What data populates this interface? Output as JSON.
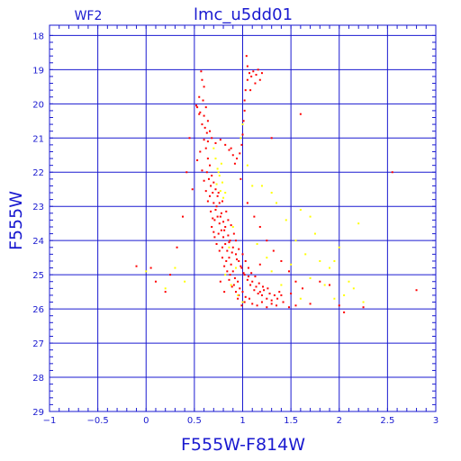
{
  "chart_data": {
    "type": "scatter",
    "title": "lmc_u5dd01",
    "subtitle": "WF2",
    "xlabel": "F555W-F814W",
    "ylabel": "F555W",
    "xlim": [
      -1,
      3
    ],
    "ylim": [
      29,
      17.7
    ],
    "y_inverted": true,
    "grid": true,
    "x_ticks": [
      -1,
      -0.5,
      0,
      0.5,
      1,
      1.5,
      2,
      2.5,
      3
    ],
    "x_tick_labels": [
      "−1",
      "−0.5",
      "0",
      "0.5",
      "1",
      "1.5",
      "2",
      "2.5",
      "3"
    ],
    "y_ticks": [
      18,
      19,
      20,
      21,
      22,
      23,
      24,
      25,
      26,
      27,
      28,
      29
    ],
    "y_tick_labels": [
      "18",
      "19",
      "20",
      "21",
      "22",
      "23",
      "24",
      "25",
      "26",
      "27",
      "28",
      "29"
    ],
    "series": [
      {
        "color": "#ff0000",
        "points": [
          [
            0.57,
            19.05
          ],
          [
            0.58,
            19.3
          ],
          [
            0.6,
            19.5
          ],
          [
            0.55,
            19.8
          ],
          [
            0.53,
            20.1
          ],
          [
            0.56,
            20.25
          ],
          [
            0.6,
            20.35
          ],
          [
            0.58,
            20.6
          ],
          [
            0.61,
            20.7
          ],
          [
            0.63,
            20.85
          ],
          [
            0.55,
            20.3
          ],
          [
            0.52,
            20.05
          ],
          [
            0.59,
            19.9
          ],
          [
            0.62,
            20.1
          ],
          [
            0.64,
            20.5
          ],
          [
            0.66,
            20.8
          ],
          [
            0.6,
            21.05
          ],
          [
            0.64,
            21.1
          ],
          [
            0.68,
            21.0
          ],
          [
            0.72,
            21.15
          ],
          [
            0.77,
            21.05
          ],
          [
            0.82,
            21.2
          ],
          [
            0.86,
            21.35
          ],
          [
            0.9,
            21.5
          ],
          [
            0.94,
            21.6
          ],
          [
            0.97,
            21.45
          ],
          [
            0.99,
            21.2
          ],
          [
            1.0,
            20.9
          ],
          [
            1.01,
            20.5
          ],
          [
            1.02,
            20.2
          ],
          [
            1.02,
            19.9
          ],
          [
            1.03,
            19.6
          ],
          [
            1.05,
            19.3
          ],
          [
            1.07,
            19.1
          ],
          [
            1.09,
            19.2
          ],
          [
            1.11,
            19.05
          ],
          [
            1.14,
            19.15
          ],
          [
            1.16,
            19.0
          ],
          [
            1.18,
            19.3
          ],
          [
            1.2,
            19.1
          ],
          [
            1.13,
            19.4
          ],
          [
            1.04,
            18.6
          ],
          [
            1.05,
            18.9
          ],
          [
            1.08,
            19.6
          ],
          [
            0.62,
            21.3
          ],
          [
            0.64,
            21.6
          ],
          [
            0.66,
            21.8
          ],
          [
            0.63,
            22.0
          ],
          [
            0.65,
            22.2
          ],
          [
            0.67,
            22.4
          ],
          [
            0.69,
            22.6
          ],
          [
            0.66,
            22.7
          ],
          [
            0.7,
            22.9
          ],
          [
            0.72,
            23.1
          ],
          [
            0.74,
            23.3
          ],
          [
            0.71,
            23.4
          ],
          [
            0.76,
            23.5
          ],
          [
            0.78,
            23.7
          ],
          [
            0.75,
            23.8
          ],
          [
            0.8,
            23.9
          ],
          [
            0.82,
            24.1
          ],
          [
            0.79,
            24.2
          ],
          [
            0.84,
            24.3
          ],
          [
            0.86,
            24.5
          ],
          [
            0.83,
            24.6
          ],
          [
            0.88,
            24.7
          ],
          [
            0.9,
            24.9
          ],
          [
            0.87,
            25.0
          ],
          [
            0.92,
            25.1
          ],
          [
            0.95,
            25.2
          ],
          [
            0.91,
            25.3
          ],
          [
            0.97,
            25.4
          ],
          [
            1.0,
            25.5
          ],
          [
            0.96,
            25.6
          ],
          [
            1.03,
            25.65
          ],
          [
            1.07,
            25.7
          ],
          [
            1.02,
            25.8
          ],
          [
            1.1,
            25.85
          ],
          [
            1.15,
            25.9
          ],
          [
            1.2,
            25.8
          ],
          [
            1.25,
            25.95
          ],
          [
            1.3,
            25.85
          ],
          [
            1.35,
            25.9
          ],
          [
            1.42,
            25.8
          ],
          [
            1.48,
            25.95
          ],
          [
            1.55,
            25.9
          ],
          [
            0.68,
            22.1
          ],
          [
            0.7,
            22.3
          ],
          [
            0.72,
            22.5
          ],
          [
            0.74,
            22.7
          ],
          [
            0.76,
            22.9
          ],
          [
            0.78,
            23.2
          ],
          [
            0.8,
            23.45
          ],
          [
            0.82,
            23.6
          ],
          [
            0.85,
            23.85
          ],
          [
            0.87,
            24.0
          ],
          [
            0.9,
            24.2
          ],
          [
            0.93,
            24.4
          ],
          [
            0.96,
            24.6
          ],
          [
            0.99,
            24.8
          ],
          [
            1.02,
            25.0
          ],
          [
            1.05,
            25.15
          ],
          [
            1.08,
            25.3
          ],
          [
            1.12,
            25.45
          ],
          [
            1.16,
            25.55
          ],
          [
            1.2,
            25.6
          ],
          [
            1.25,
            25.7
          ],
          [
            1.3,
            25.75
          ],
          [
            1.36,
            25.7
          ],
          [
            1.4,
            25.6
          ],
          [
            0.73,
            23.0
          ],
          [
            0.77,
            23.3
          ],
          [
            0.81,
            23.7
          ],
          [
            0.86,
            24.05
          ],
          [
            0.89,
            24.35
          ],
          [
            0.94,
            24.55
          ],
          [
            0.98,
            24.75
          ],
          [
            1.01,
            24.95
          ],
          [
            1.06,
            25.05
          ],
          [
            1.1,
            25.2
          ],
          [
            1.14,
            25.35
          ],
          [
            1.18,
            25.5
          ],
          [
            1.22,
            25.45
          ],
          [
            1.28,
            25.55
          ],
          [
            1.33,
            25.6
          ],
          [
            1.38,
            25.5
          ],
          [
            0.75,
            22.6
          ],
          [
            0.79,
            22.85
          ],
          [
            0.83,
            23.15
          ],
          [
            0.85,
            23.4
          ],
          [
            0.88,
            23.55
          ],
          [
            0.91,
            23.8
          ],
          [
            0.93,
            24.0
          ],
          [
            0.96,
            24.25
          ],
          [
            1.0,
            24.4
          ],
          [
            1.03,
            24.6
          ],
          [
            1.06,
            24.8
          ],
          [
            1.09,
            24.95
          ],
          [
            1.13,
            25.05
          ],
          [
            1.17,
            25.25
          ],
          [
            1.21,
            25.35
          ],
          [
            1.26,
            25.4
          ],
          [
            0.68,
            23.6
          ],
          [
            0.71,
            23.9
          ],
          [
            0.73,
            24.1
          ],
          [
            0.76,
            24.3
          ],
          [
            0.79,
            24.5
          ],
          [
            0.81,
            24.75
          ],
          [
            0.84,
            24.9
          ],
          [
            0.86,
            25.15
          ],
          [
            0.89,
            25.35
          ],
          [
            0.93,
            25.5
          ],
          [
            0.95,
            25.7
          ],
          [
            0.99,
            25.9
          ],
          [
            0.81,
            25.5
          ],
          [
            0.77,
            25.2
          ],
          [
            0.56,
            21.4
          ],
          [
            0.53,
            21.65
          ],
          [
            0.58,
            21.95
          ],
          [
            0.6,
            22.25
          ],
          [
            0.62,
            22.55
          ],
          [
            0.64,
            22.85
          ],
          [
            0.67,
            23.15
          ],
          [
            0.69,
            23.35
          ],
          [
            0.7,
            23.75
          ],
          [
            0.98,
            22.2
          ],
          [
            1.05,
            22.9
          ],
          [
            1.12,
            23.3
          ],
          [
            1.18,
            23.6
          ],
          [
            1.25,
            24.0
          ],
          [
            1.32,
            24.3
          ],
          [
            1.4,
            24.6
          ],
          [
            1.48,
            24.9
          ],
          [
            1.55,
            25.2
          ],
          [
            1.62,
            25.4
          ],
          [
            0.45,
            21.0
          ],
          [
            0.42,
            22.0
          ],
          [
            0.48,
            22.5
          ],
          [
            0.38,
            23.3
          ],
          [
            0.32,
            24.2
          ],
          [
            0.25,
            25.0
          ],
          [
            0.2,
            25.5
          ],
          [
            0.1,
            25.2
          ],
          [
            0.05,
            24.8
          ],
          [
            -0.1,
            24.75
          ],
          [
            1.8,
            25.2
          ],
          [
            2.0,
            25.9
          ],
          [
            2.05,
            26.1
          ],
          [
            2.25,
            25.95
          ],
          [
            2.55,
            22.0
          ],
          [
            2.8,
            25.45
          ],
          [
            1.6,
            20.3
          ],
          [
            1.3,
            21.0
          ],
          [
            0.88,
            21.3
          ],
          [
            0.92,
            21.75
          ],
          [
            1.18,
            24.7
          ],
          [
            1.5,
            25.55
          ],
          [
            1.7,
            25.85
          ],
          [
            1.9,
            25.3
          ]
        ]
      },
      {
        "color": "#ffff00",
        "points": [
          [
            0.7,
            21.3
          ],
          [
            0.72,
            21.6
          ],
          [
            0.74,
            21.9
          ],
          [
            0.76,
            22.1
          ],
          [
            0.73,
            22.35
          ],
          [
            0.77,
            22.55
          ],
          [
            0.8,
            22.75
          ],
          [
            0.75,
            22.0
          ],
          [
            0.79,
            22.3
          ],
          [
            0.82,
            22.6
          ],
          [
            0.78,
            21.75
          ],
          [
            1.0,
            20.6
          ],
          [
            0.98,
            21.0
          ],
          [
            1.05,
            21.8
          ],
          [
            1.1,
            22.4
          ],
          [
            1.2,
            22.4
          ],
          [
            1.3,
            22.6
          ],
          [
            1.35,
            22.9
          ],
          [
            1.45,
            23.4
          ],
          [
            1.6,
            23.1
          ],
          [
            1.7,
            23.3
          ],
          [
            1.75,
            23.8
          ],
          [
            1.55,
            24.0
          ],
          [
            1.65,
            24.4
          ],
          [
            1.8,
            24.6
          ],
          [
            1.9,
            24.8
          ],
          [
            2.0,
            24.2
          ],
          [
            2.2,
            23.5
          ],
          [
            1.5,
            24.7
          ],
          [
            1.7,
            25.1
          ],
          [
            1.85,
            25.3
          ],
          [
            2.05,
            25.6
          ],
          [
            2.15,
            25.4
          ],
          [
            2.25,
            25.8
          ],
          [
            1.95,
            25.7
          ],
          [
            1.6,
            25.7
          ],
          [
            1.4,
            25.3
          ],
          [
            1.3,
            24.9
          ],
          [
            1.25,
            24.5
          ],
          [
            1.15,
            24.1
          ],
          [
            2.1,
            25.2
          ],
          [
            1.95,
            24.6
          ],
          [
            0.95,
            25.6
          ],
          [
            1.0,
            25.8
          ],
          [
            0.88,
            25.3
          ],
          [
            0.82,
            25.0
          ],
          [
            0.86,
            24.2
          ],
          [
            0.9,
            23.6
          ],
          [
            0.93,
            24.8
          ],
          [
            0.3,
            24.8
          ],
          [
            0.2,
            25.4
          ],
          [
            0.0,
            24.9
          ],
          [
            0.4,
            25.2
          ]
        ]
      }
    ]
  }
}
